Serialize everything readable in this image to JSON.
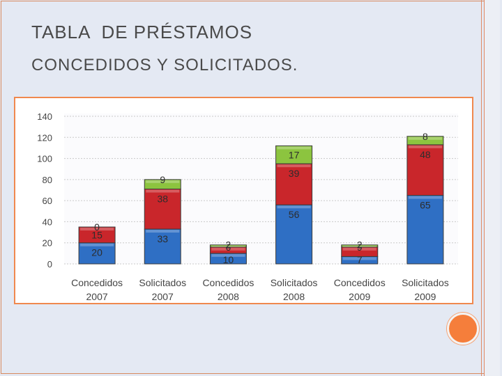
{
  "slide": {
    "title_line1": "TABLA  DE PRÉSTAMOS",
    "title_line2": "CONCEDIDOS Y SOLICITADOS."
  },
  "chart_data": {
    "type": "bar",
    "stacked": true,
    "categories": [
      [
        "Concedidos",
        "2007"
      ],
      [
        "Solicitados",
        "2007"
      ],
      [
        "Concedidos",
        "2008"
      ],
      [
        "Solicitados",
        "2008"
      ],
      [
        "Concedidos",
        "2009"
      ],
      [
        "Solicitados",
        "2009"
      ]
    ],
    "series": [
      {
        "color": "#2f6fc4",
        "values": [
          20,
          33,
          10,
          56,
          7,
          65
        ],
        "labels": [
          "20",
          "33",
          "10",
          "56",
          "7",
          "65"
        ]
      },
      {
        "color": "#c9262b",
        "values": [
          15,
          38,
          6,
          39,
          9,
          48
        ],
        "labels": [
          "15",
          "38",
          "6",
          "39",
          "9",
          "48"
        ]
      },
      {
        "color": "#8cc43f",
        "values": [
          0,
          9,
          2,
          17,
          2,
          8
        ],
        "labels": [
          "0",
          "9",
          "2",
          "17",
          "2",
          "8"
        ]
      }
    ],
    "ylim": [
      0,
      140
    ],
    "yticks": [
      "0",
      "20",
      "40",
      "60",
      "80",
      "100",
      "120",
      "140"
    ],
    "grid": true,
    "legend": "none"
  },
  "colors": {
    "accent": "#f0884e",
    "background": "#e4e9f3"
  }
}
